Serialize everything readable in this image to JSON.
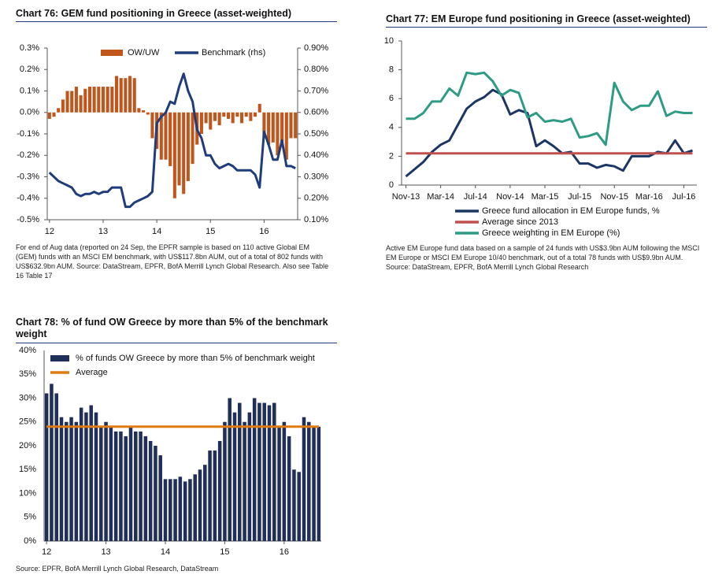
{
  "chart_data": [
    {
      "type": "bar",
      "title": "Chart 76: GEM fund positioning in Greece (asset-weighted)",
      "note": "For end of Aug data (reported on 24 Sep, the EPFR sample is based on 110 active Global EM (GEM) funds with an MSCI EM benchmark, with US$117.8bn AUM, out of a total of 802 funds with US$632.9bn AUM. Source: DataStream, EPFR, BofA Merrill Lynch Global Research. Also see  Table 16 Table 17",
      "categories": [
        "12",
        null,
        null,
        null,
        null,
        null,
        null,
        null,
        null,
        null,
        null,
        null,
        "13",
        null,
        null,
        null,
        null,
        null,
        null,
        null,
        null,
        null,
        null,
        null,
        "14",
        null,
        null,
        null,
        null,
        null,
        null,
        null,
        null,
        null,
        null,
        null,
        "15",
        null,
        null,
        null,
        null,
        null,
        null,
        null,
        null,
        null,
        null,
        null,
        "16",
        null,
        null,
        null,
        null,
        null,
        null,
        null
      ],
      "series": [
        {
          "name": "OW/UW",
          "type": "bar",
          "color": "#c0561b",
          "values": [
            -0.03,
            -0.02,
            0.02,
            0.06,
            0.1,
            0.1,
            0.12,
            0.08,
            0.11,
            0.12,
            0.12,
            0.12,
            0.12,
            0.12,
            0.12,
            0.17,
            0.16,
            0.16,
            0.17,
            0.16,
            0.02,
            0.01,
            -0.01,
            -0.12,
            -0.17,
            -0.22,
            -0.22,
            -0.25,
            -0.4,
            -0.34,
            -0.38,
            -0.32,
            -0.24,
            -0.15,
            -0.1,
            -0.05,
            -0.08,
            -0.04,
            -0.06,
            -0.02,
            -0.03,
            -0.05,
            -0.02,
            -0.05,
            -0.02,
            -0.04,
            -0.02,
            0.04,
            -0.12,
            -0.15,
            -0.14,
            -0.2,
            -0.15,
            -0.22,
            -0.12,
            -0.12
          ]
        },
        {
          "name": "Benchmark (rhs)",
          "type": "line",
          "axis": "y2",
          "color": "#1f3d7a",
          "values": [
            0.32,
            0.3,
            0.28,
            0.27,
            0.26,
            0.25,
            0.22,
            0.21,
            0.22,
            0.22,
            0.23,
            0.22,
            0.23,
            0.23,
            0.25,
            0.25,
            0.25,
            0.16,
            0.16,
            0.18,
            0.19,
            0.2,
            0.21,
            0.23,
            0.55,
            0.58,
            0.6,
            0.65,
            0.64,
            0.72,
            0.78,
            0.7,
            0.65,
            0.52,
            0.48,
            0.4,
            0.4,
            0.36,
            0.34,
            0.35,
            0.36,
            0.35,
            0.33,
            0.33,
            0.33,
            0.33,
            0.31,
            0.25,
            0.51,
            0.45,
            0.38,
            0.38,
            0.47,
            0.35,
            0.35,
            0.34
          ]
        }
      ],
      "ylim": [
        -0.5,
        0.3
      ],
      "yticks": [
        {
          "value": -0.5,
          "label": "-0.5%"
        },
        {
          "value": -0.4,
          "label": "-0.4%"
        },
        {
          "value": -0.3,
          "label": "-0.3%"
        },
        {
          "value": -0.2,
          "label": "-0.2%"
        },
        {
          "value": -0.1,
          "label": "-0.1%"
        },
        {
          "value": 0,
          "label": "0.0%"
        },
        {
          "value": 0.1,
          "label": "0.1%"
        },
        {
          "value": 0.2,
          "label": "0.2%"
        },
        {
          "value": 0.3,
          "label": "0.3%"
        }
      ],
      "y2lim": [
        0.1,
        0.9
      ],
      "y2ticks": [
        {
          "value": 0.1,
          "label": "0.10%"
        },
        {
          "value": 0.2,
          "label": "0.20%"
        },
        {
          "value": 0.3,
          "label": "0.30%"
        },
        {
          "value": 0.4,
          "label": "0.40%"
        },
        {
          "value": 0.5,
          "label": "0.50%"
        },
        {
          "value": 0.6,
          "label": "0.60%"
        },
        {
          "value": 0.7,
          "label": "0.70%"
        },
        {
          "value": 0.8,
          "label": "0.80%"
        },
        {
          "value": 0.9,
          "label": "0.90%"
        }
      ]
    },
    {
      "type": "line",
      "title": "Chart 77: EM Europe fund positioning in Greece (asset-weighted)",
      "note": "Active EM Europe fund data based on a sample of 24 funds with US$3.9bn AUM following the MSCI EM Europe or MSCI EM Europe 10/40 benchmark, out of a total 78 funds with US$9.9bn AUM. Source: DataStream, EPFR, BofA Merrill Lynch Global Research",
      "categories": [
        "Nov-13",
        null,
        null,
        null,
        "Mar-14",
        null,
        null,
        null,
        "Jul-14",
        null,
        null,
        null,
        "Nov-14",
        null,
        null,
        null,
        "Mar-15",
        null,
        null,
        null,
        "Jul-15",
        null,
        null,
        null,
        "Nov-15",
        null,
        null,
        null,
        "Mar-16",
        null,
        null,
        null,
        "Jul-16",
        null
      ],
      "series": [
        {
          "name": "Greece fund allocation in EM Europe funds, %",
          "type": "line",
          "color": "#1c3664",
          "values": [
            0.6,
            1.1,
            1.6,
            2.3,
            2.8,
            3.1,
            4.2,
            5.3,
            5.8,
            6.1,
            6.6,
            6.3,
            4.9,
            5.2,
            5.0,
            2.7,
            3.1,
            2.7,
            2.2,
            2.3,
            1.5,
            1.5,
            1.2,
            1.4,
            1.3,
            1.0,
            2.0,
            2.0,
            2.0,
            2.3,
            2.2,
            3.1,
            2.2,
            2.4
          ]
        },
        {
          "name": "Average since  2013",
          "type": "line",
          "color": "#c0504d",
          "values": [
            2.2,
            2.2,
            2.2,
            2.2,
            2.2,
            2.2,
            2.2,
            2.2,
            2.2,
            2.2,
            2.2,
            2.2,
            2.2,
            2.2,
            2.2,
            2.2,
            2.2,
            2.2,
            2.2,
            2.2,
            2.2,
            2.2,
            2.2,
            2.2,
            2.2,
            2.2,
            2.2,
            2.2,
            2.2,
            2.2,
            2.2,
            2.2,
            2.2,
            2.2
          ]
        },
        {
          "name": "Greece weighting in EM Europe (%)",
          "type": "line",
          "color": "#2e9b84",
          "values": [
            4.6,
            4.6,
            5.0,
            5.8,
            5.8,
            6.7,
            6.2,
            7.8,
            7.7,
            7.8,
            7.2,
            6.2,
            6.6,
            6.4,
            4.7,
            5.0,
            4.4,
            4.5,
            4.4,
            4.6,
            3.3,
            3.4,
            3.6,
            2.8,
            7.1,
            5.8,
            5.2,
            5.5,
            5.5,
            6.5,
            4.8,
            5.1,
            5.0,
            5.0
          ]
        }
      ],
      "ylim": [
        0,
        10
      ],
      "yticks": [
        0,
        2,
        4,
        6,
        8,
        10
      ]
    },
    {
      "type": "bar",
      "title": "Chart 78: % of fund OW Greece by more than 5% of the benchmark weight",
      "note": "Source: EPFR, BofA Merrill Lynch Global Research, DataStream",
      "categories": [
        "12",
        null,
        null,
        null,
        null,
        null,
        null,
        null,
        null,
        null,
        null,
        null,
        "13",
        null,
        null,
        null,
        null,
        null,
        null,
        null,
        null,
        null,
        null,
        null,
        "14",
        null,
        null,
        null,
        null,
        null,
        null,
        null,
        null,
        null,
        null,
        null,
        "15",
        null,
        null,
        null,
        null,
        null,
        null,
        null,
        null,
        null,
        null,
        null,
        "16",
        null,
        null,
        null,
        null,
        null,
        null,
        null
      ],
      "series": [
        {
          "name": "% of funds OW Greece by more than 5% of benchmark weight",
          "type": "bar",
          "color": "#1f2f5a",
          "values": [
            31,
            33,
            31,
            26,
            25,
            26,
            25,
            28,
            27,
            28.5,
            27,
            24,
            25,
            24,
            23,
            23,
            22,
            24,
            23,
            23,
            22,
            21,
            20,
            18,
            13,
            13,
            13,
            13.5,
            12.5,
            13,
            14,
            15,
            16,
            19,
            19,
            21,
            25,
            30,
            27,
            29,
            25,
            27,
            30,
            29,
            29,
            28.5,
            29,
            24,
            25,
            22,
            15,
            14.5,
            26,
            25,
            24,
            24
          ]
        },
        {
          "name": "Average",
          "type": "line",
          "color": "#e07b14",
          "values": [
            24,
            24,
            24,
            24,
            24,
            24,
            24,
            24,
            24,
            24,
            24,
            24,
            24,
            24,
            24,
            24,
            24,
            24,
            24,
            24,
            24,
            24,
            24,
            24,
            24,
            24,
            24,
            24,
            24,
            24,
            24,
            24,
            24,
            24,
            24,
            24,
            24,
            24,
            24,
            24,
            24,
            24,
            24,
            24,
            24,
            24,
            24,
            24,
            24,
            24,
            24,
            24,
            24,
            24,
            24,
            24
          ]
        }
      ],
      "ylim": [
        0,
        40
      ],
      "yticks": [
        {
          "value": 0,
          "label": "0%"
        },
        {
          "value": 5,
          "label": "5%"
        },
        {
          "value": 10,
          "label": "10%"
        },
        {
          "value": 15,
          "label": "15%"
        },
        {
          "value": 20,
          "label": "20%"
        },
        {
          "value": 25,
          "label": "25%"
        },
        {
          "value": 30,
          "label": "30%"
        },
        {
          "value": 35,
          "label": "35%"
        },
        {
          "value": 40,
          "label": "40%"
        }
      ]
    }
  ]
}
